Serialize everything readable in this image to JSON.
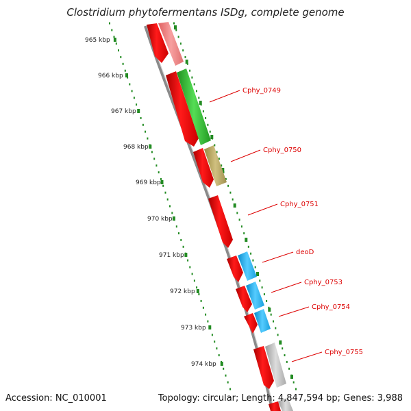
{
  "title": "Clostridium phytofermentans ISDg, complete genome",
  "footer": {
    "accession": "Accession: NC_010001",
    "summary": "Topology: circular; Length: 4,847,594 bp; Genes: 3,988"
  },
  "scale": {
    "ticks": [
      "965 kbp",
      "966 kbp",
      "967 kbp",
      "968 kbp",
      "969 kbp",
      "970 kbp",
      "971 kbp",
      "972 kbp",
      "973 kbp",
      "974 kbp"
    ]
  },
  "genes": [
    {
      "label": "Cphy_0749"
    },
    {
      "label": "Cphy_0750"
    },
    {
      "label": "Cphy_0751"
    },
    {
      "label": "deoD"
    },
    {
      "label": "Cphy_0753"
    },
    {
      "label": "Cphy_0754"
    },
    {
      "label": "Cphy_0755"
    }
  ],
  "colors": {
    "forward_cds": "#ee0000",
    "rna_pink": "#f08080",
    "green_feature": "#33bb33",
    "olive_feature": "#b8a860",
    "cyan_feature": "#1ab3ee",
    "grey_feature": "#b4b4b4",
    "backbone": "#777777",
    "tick_green": "#228b22",
    "label_red": "#dd0000"
  }
}
